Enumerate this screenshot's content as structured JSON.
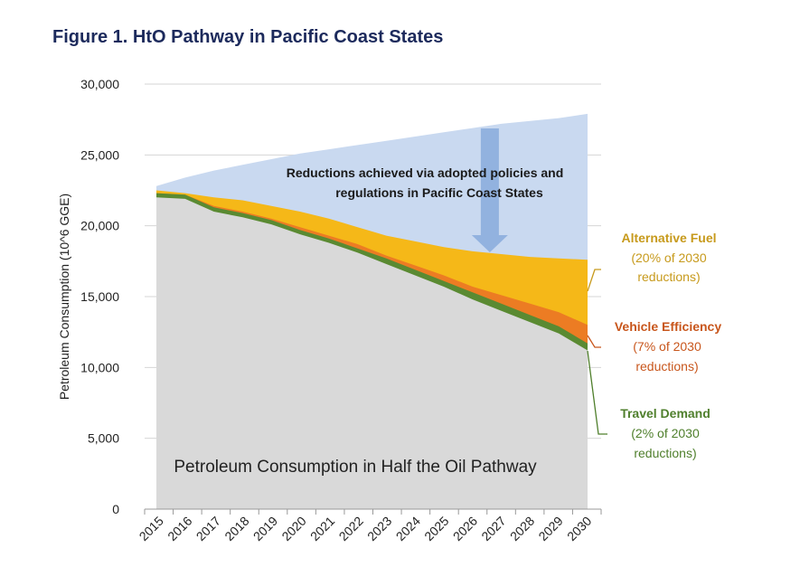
{
  "figure_title": "Figure 1. HtO Pathway in Pacific Coast States",
  "colors": {
    "bau": "#c9d9f0",
    "alternative_fuel": "#f5b818",
    "vehicle_efficiency": "#ec7c23",
    "travel_demand": "#5a8a32",
    "hto": "#d9d9d9",
    "arrow": "#8fb0dd",
    "alt_label": "#c79a1c",
    "veh_label": "#c8561c",
    "travel_label": "#4f7f2c"
  },
  "chart_data": {
    "type": "area",
    "title": "Figure 1. HtO Pathway in Pacific Coast States",
    "xlabel": "",
    "ylabel": "Petroleum Consumption (10^6 GGE)",
    "ylim": [
      0,
      30000
    ],
    "yticks": [
      "0",
      "5,000",
      "10,000",
      "15,000",
      "20,000",
      "25,000",
      "30,000"
    ],
    "x": [
      "2015",
      "2016",
      "2017",
      "2018",
      "2019",
      "2020",
      "2021",
      "2022",
      "2023",
      "2024",
      "2025",
      "2026",
      "2027",
      "2028",
      "2029",
      "2030"
    ],
    "series": [
      {
        "name": "Petroleum Consumption in Half the Oil Pathway",
        "values": [
          22000,
          21900,
          21000,
          20600,
          20100,
          19400,
          18800,
          18100,
          17300,
          16500,
          15700,
          14800,
          14000,
          13200,
          12400,
          11200
        ]
      },
      {
        "name": "Travel Demand",
        "values": [
          22300,
          22200,
          21300,
          20900,
          20400,
          19700,
          19100,
          18400,
          17700,
          16900,
          16100,
          15300,
          14500,
          13700,
          12900,
          11700
        ]
      },
      {
        "name": "Vehicle Efficiency",
        "values": [
          22300,
          22200,
          21400,
          21000,
          20500,
          19900,
          19300,
          18700,
          17900,
          17200,
          16500,
          15700,
          15100,
          14500,
          13900,
          13000
        ]
      },
      {
        "name": "Alternative Fuel",
        "values": [
          22500,
          22300,
          22000,
          21800,
          21400,
          21000,
          20500,
          19900,
          19300,
          18900,
          18500,
          18200,
          18000,
          17800,
          17700,
          17600
        ]
      },
      {
        "name": "Reductions achieved via adopted policies and regulations in Pacific Coast States",
        "values": [
          22800,
          23400,
          23900,
          24300,
          24700,
          25100,
          25400,
          25700,
          26000,
          26300,
          26600,
          26900,
          27200,
          27400,
          27600,
          27900
        ]
      }
    ],
    "annotations": {
      "top_note_line1": "Reductions achieved via adopted policies and",
      "top_note_line2": "regulations in Pacific Coast States",
      "inner_label": "Petroleum Consumption in Half the Oil Pathway",
      "alt_fuel": {
        "title": "Alternative Fuel",
        "line2": "(20% of  2030",
        "line3": "reductions)"
      },
      "veh_eff": {
        "title": "Vehicle Efficiency",
        "line2": "(7% of 2030",
        "line3": "reductions)"
      },
      "travel": {
        "title": "Travel Demand",
        "line2": "(2% of  2030",
        "line3": "reductions)"
      }
    }
  }
}
